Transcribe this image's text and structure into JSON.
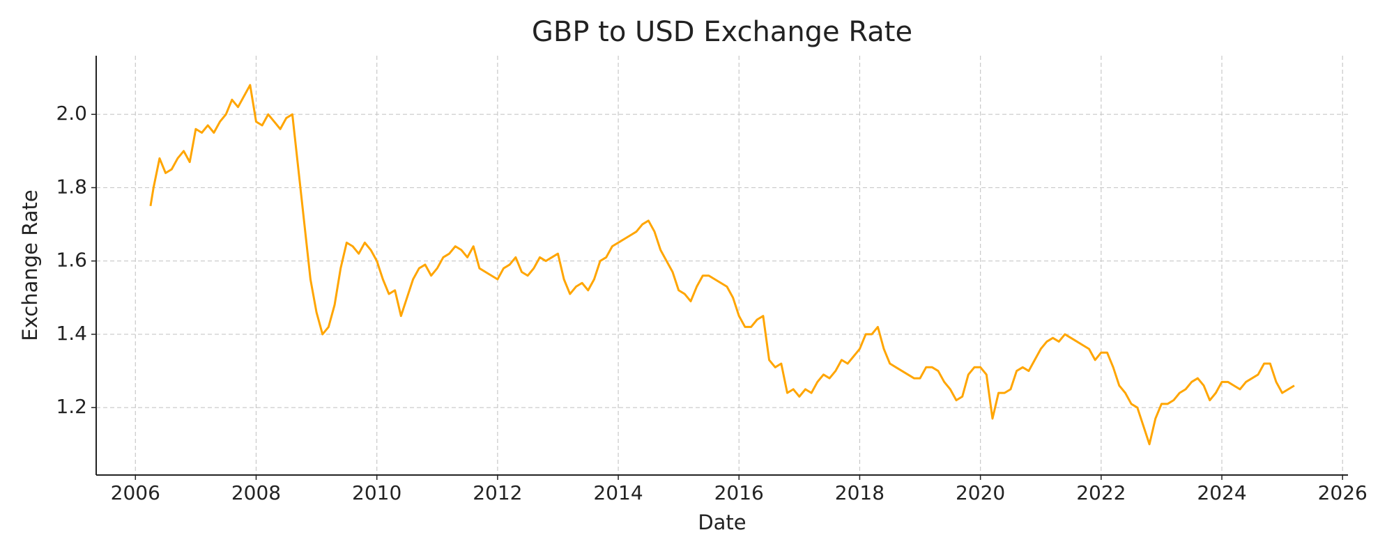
{
  "chart_data": {
    "type": "line",
    "title": "GBP to USD Exchange Rate",
    "x_label": "Date",
    "y_label": "Exchange Rate",
    "color": "#ffa500",
    "grid": true,
    "xlim": [
      2005.35,
      2026.09
    ],
    "xticks": [
      2006,
      2008,
      2010,
      2012,
      2014,
      2016,
      2018,
      2020,
      2022,
      2024,
      2026
    ],
    "ylim": [
      1.016,
      2.16
    ],
    "yticks": [
      1.2,
      1.4,
      1.6,
      1.8,
      {
        "value": 2,
        "label": "2.0"
      }
    ],
    "x": [
      2006.25,
      2006.3,
      2006.4,
      2006.5,
      2006.6,
      2006.7,
      2006.8,
      2006.9,
      2007.0,
      2007.1,
      2007.2,
      2007.3,
      2007.4,
      2007.5,
      2007.6,
      2007.7,
      2007.8,
      2007.9,
      2008.0,
      2008.1,
      2008.2,
      2008.3,
      2008.4,
      2008.5,
      2008.6,
      2008.7,
      2008.8,
      2008.9,
      2009.0,
      2009.1,
      2009.2,
      2009.3,
      2009.4,
      2009.5,
      2009.6,
      2009.7,
      2009.8,
      2009.9,
      2010.0,
      2010.1,
      2010.2,
      2010.3,
      2010.4,
      2010.5,
      2010.6,
      2010.7,
      2010.8,
      2010.9,
      2011.0,
      2011.1,
      2011.2,
      2011.3,
      2011.4,
      2011.5,
      2011.6,
      2011.7,
      2011.8,
      2011.9,
      2012.0,
      2012.1,
      2012.2,
      2012.3,
      2012.4,
      2012.5,
      2012.6,
      2012.7,
      2012.8,
      2012.9,
      2013.0,
      2013.1,
      2013.2,
      2013.3,
      2013.4,
      2013.5,
      2013.6,
      2013.7,
      2013.8,
      2013.9,
      2014.0,
      2014.1,
      2014.2,
      2014.3,
      2014.4,
      2014.5,
      2014.6,
      2014.7,
      2014.8,
      2014.9,
      2015.0,
      2015.1,
      2015.2,
      2015.3,
      2015.4,
      2015.5,
      2015.6,
      2015.7,
      2015.8,
      2015.9,
      2016.0,
      2016.1,
      2016.2,
      2016.3,
      2016.4,
      2016.5,
      2016.6,
      2016.7,
      2016.8,
      2016.9,
      2017.0,
      2017.1,
      2017.2,
      2017.3,
      2017.4,
      2017.5,
      2017.6,
      2017.7,
      2017.8,
      2017.9,
      2018.0,
      2018.1,
      2018.2,
      2018.3,
      2018.4,
      2018.5,
      2018.6,
      2018.7,
      2018.8,
      2018.9,
      2019.0,
      2019.1,
      2019.2,
      2019.3,
      2019.4,
      2019.5,
      2019.6,
      2019.7,
      2019.8,
      2019.9,
      2020.0,
      2020.1,
      2020.2,
      2020.3,
      2020.4,
      2020.5,
      2020.6,
      2020.7,
      2020.8,
      2020.9,
      2021.0,
      2021.1,
      2021.2,
      2021.3,
      2021.4,
      2021.5,
      2021.6,
      2021.7,
      2021.8,
      2021.9,
      2022.0,
      2022.1,
      2022.2,
      2022.3,
      2022.4,
      2022.5,
      2022.6,
      2022.7,
      2022.8,
      2022.9,
      2023.0,
      2023.1,
      2023.2,
      2023.3,
      2023.4,
      2023.5,
      2023.6,
      2023.7,
      2023.8,
      2023.9,
      2024.0,
      2024.1,
      2024.2,
      2024.3,
      2024.4,
      2024.5,
      2024.6,
      2024.7,
      2024.8,
      2024.9,
      2025.0,
      2025.1,
      2025.2
    ],
    "values": [
      1.75,
      1.8,
      1.88,
      1.84,
      1.85,
      1.88,
      1.9,
      1.87,
      1.96,
      1.95,
      1.97,
      1.95,
      1.98,
      2.0,
      2.04,
      2.02,
      2.05,
      2.08,
      1.98,
      1.97,
      2.0,
      1.98,
      1.96,
      1.99,
      2.0,
      1.85,
      1.7,
      1.55,
      1.46,
      1.4,
      1.42,
      1.48,
      1.58,
      1.65,
      1.64,
      1.62,
      1.65,
      1.63,
      1.6,
      1.55,
      1.51,
      1.52,
      1.45,
      1.5,
      1.55,
      1.58,
      1.59,
      1.56,
      1.58,
      1.61,
      1.62,
      1.64,
      1.63,
      1.61,
      1.64,
      1.58,
      1.57,
      1.56,
      1.55,
      1.58,
      1.59,
      1.61,
      1.57,
      1.56,
      1.58,
      1.61,
      1.6,
      1.61,
      1.62,
      1.55,
      1.51,
      1.53,
      1.54,
      1.52,
      1.55,
      1.6,
      1.61,
      1.64,
      1.65,
      1.66,
      1.67,
      1.68,
      1.7,
      1.71,
      1.68,
      1.63,
      1.6,
      1.57,
      1.52,
      1.51,
      1.49,
      1.53,
      1.56,
      1.56,
      1.55,
      1.54,
      1.53,
      1.5,
      1.45,
      1.42,
      1.42,
      1.44,
      1.45,
      1.33,
      1.31,
      1.32,
      1.24,
      1.25,
      1.23,
      1.25,
      1.24,
      1.27,
      1.29,
      1.28,
      1.3,
      1.33,
      1.32,
      1.34,
      1.36,
      1.4,
      1.4,
      1.42,
      1.36,
      1.32,
      1.31,
      1.3,
      1.29,
      1.28,
      1.28,
      1.31,
      1.31,
      1.3,
      1.27,
      1.25,
      1.22,
      1.23,
      1.29,
      1.31,
      1.31,
      1.29,
      1.17,
      1.24,
      1.24,
      1.25,
      1.3,
      1.31,
      1.3,
      1.33,
      1.36,
      1.38,
      1.39,
      1.38,
      1.4,
      1.39,
      1.38,
      1.37,
      1.36,
      1.33,
      1.35,
      1.35,
      1.31,
      1.26,
      1.24,
      1.21,
      1.2,
      1.15,
      1.1,
      1.17,
      1.21,
      1.21,
      1.22,
      1.24,
      1.25,
      1.27,
      1.28,
      1.26,
      1.22,
      1.24,
      1.27,
      1.27,
      1.26,
      1.25,
      1.27,
      1.28,
      1.29,
      1.32,
      1.32,
      1.27,
      1.24,
      1.25,
      1.26
    ]
  }
}
